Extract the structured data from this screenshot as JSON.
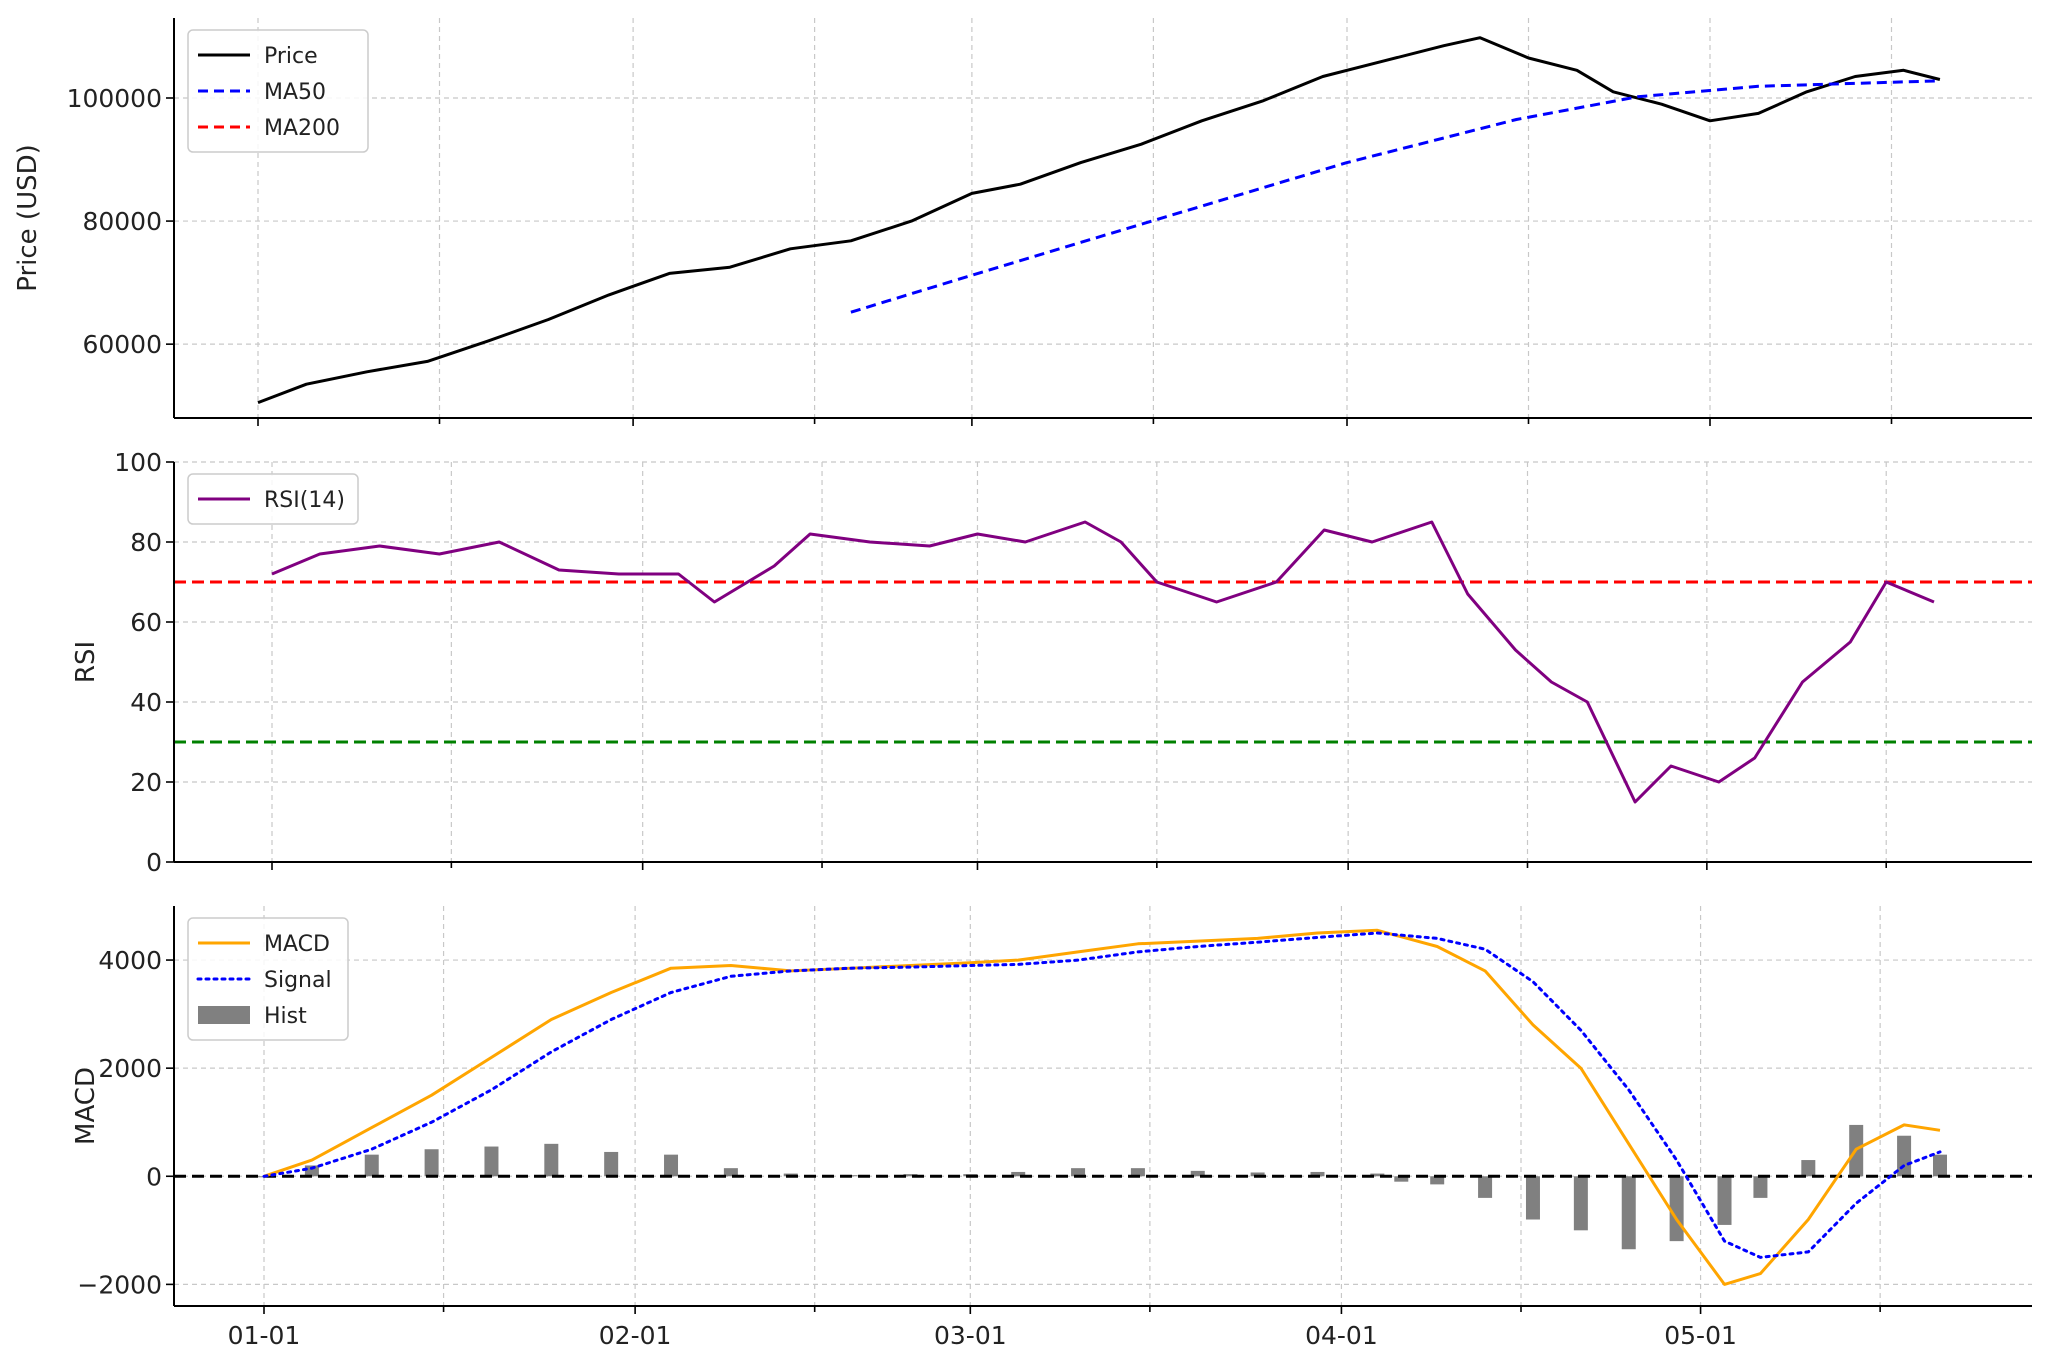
{
  "chart_data": {
    "type": "line",
    "x_axis": {
      "start_date": "2025-01-01",
      "tick_labels": [
        "01-01",
        "02-01",
        "03-01",
        "04-01",
        "05-01"
      ],
      "tick_dates": [
        "2025-01-01",
        "2025-02-01",
        "2025-03-01",
        "2025-04-01",
        "2025-05-01"
      ]
    },
    "colors": {
      "price": "#000000",
      "ma50": "#0000ff",
      "ma200": "#ff0000",
      "rsi": "#800080",
      "overbought": "#ff0000",
      "oversold": "#008000",
      "macd": "#ffa500",
      "signal": "#0000ff",
      "hist": "#808080"
    },
    "panels": [
      {
        "id": "price",
        "ylabel": "Price (USD)",
        "ylim": [
          48000,
          113000
        ],
        "yticks": [
          60000,
          80000,
          100000
        ],
        "legend": [
          {
            "name": "Price",
            "style": "solid",
            "color": "#000000"
          },
          {
            "name": "MA50",
            "style": "dashed",
            "color": "#0000ff"
          },
          {
            "name": "MA200",
            "style": "dashed",
            "color": "#ff0000"
          }
        ],
        "series": [
          {
            "name": "Price",
            "points": [
              [
                "2025-01-01",
                50500
              ],
              [
                "2025-01-05",
                53500
              ],
              [
                "2025-01-10",
                55500
              ],
              [
                "2025-01-15",
                57200
              ],
              [
                "2025-01-20",
                60500
              ],
              [
                "2025-01-25",
                64000
              ],
              [
                "2025-01-30",
                68000
              ],
              [
                "2025-02-04",
                71500
              ],
              [
                "2025-02-09",
                72500
              ],
              [
                "2025-02-14",
                75500
              ],
              [
                "2025-02-19",
                76800
              ],
              [
                "2025-02-24",
                80000
              ],
              [
                "2025-03-01",
                84500
              ],
              [
                "2025-03-05",
                86000
              ],
              [
                "2025-03-10",
                89500
              ],
              [
                "2025-03-15",
                92500
              ],
              [
                "2025-03-20",
                96300
              ],
              [
                "2025-03-25",
                99500
              ],
              [
                "2025-03-30",
                103500
              ],
              [
                "2025-04-04",
                106000
              ],
              [
                "2025-04-09",
                108500
              ],
              [
                "2025-04-12",
                109800
              ],
              [
                "2025-04-16",
                106500
              ],
              [
                "2025-04-20",
                104500
              ],
              [
                "2025-04-23",
                101000
              ],
              [
                "2025-04-27",
                99000
              ],
              [
                "2025-05-01",
                96300
              ],
              [
                "2025-05-05",
                97500
              ],
              [
                "2025-05-09",
                101000
              ],
              [
                "2025-05-13",
                103500
              ],
              [
                "2025-05-17",
                104500
              ],
              [
                "2025-05-20",
                103000
              ]
            ]
          },
          {
            "name": "MA50",
            "points": [
              [
                "2025-02-19",
                65200
              ],
              [
                "2025-03-01",
                71200
              ],
              [
                "2025-03-15",
                79500
              ],
              [
                "2025-04-01",
                89500
              ],
              [
                "2025-04-15",
                96500
              ],
              [
                "2025-04-25",
                100200
              ],
              [
                "2025-05-05",
                101900
              ],
              [
                "2025-05-20",
                102800
              ]
            ]
          }
        ],
        "ma200_points": []
      },
      {
        "id": "rsi",
        "ylabel": "RSI",
        "ylim": [
          0,
          100
        ],
        "yticks": [
          0,
          20,
          40,
          60,
          80,
          100
        ],
        "legend": [
          {
            "name": "RSI(14)",
            "style": "solid",
            "color": "#800080"
          }
        ],
        "hlines": [
          {
            "value": 70,
            "color": "#ff0000"
          },
          {
            "value": 30,
            "color": "#008000"
          }
        ],
        "series": [
          {
            "name": "RSI(14)",
            "points": [
              [
                "2025-01-01",
                72
              ],
              [
                "2025-01-05",
                77
              ],
              [
                "2025-01-10",
                79
              ],
              [
                "2025-01-15",
                77
              ],
              [
                "2025-01-20",
                80
              ],
              [
                "2025-01-25",
                73
              ],
              [
                "2025-01-30",
                72
              ],
              [
                "2025-02-04",
                72
              ],
              [
                "2025-02-07",
                65
              ],
              [
                "2025-02-12",
                74
              ],
              [
                "2025-02-15",
                82
              ],
              [
                "2025-02-20",
                80
              ],
              [
                "2025-02-25",
                79
              ],
              [
                "2025-03-01",
                82
              ],
              [
                "2025-03-05",
                80
              ],
              [
                "2025-03-10",
                85
              ],
              [
                "2025-03-13",
                80
              ],
              [
                "2025-03-16",
                70
              ],
              [
                "2025-03-21",
                65
              ],
              [
                "2025-03-26",
                70
              ],
              [
                "2025-03-30",
                83
              ],
              [
                "2025-04-03",
                80
              ],
              [
                "2025-04-08",
                85
              ],
              [
                "2025-04-11",
                67
              ],
              [
                "2025-04-15",
                53
              ],
              [
                "2025-04-18",
                45
              ],
              [
                "2025-04-21",
                40
              ],
              [
                "2025-04-25",
                15
              ],
              [
                "2025-04-28",
                24
              ],
              [
                "2025-05-02",
                20
              ],
              [
                "2025-05-05",
                26
              ],
              [
                "2025-05-09",
                45
              ],
              [
                "2025-05-13",
                55
              ],
              [
                "2025-05-16",
                70
              ],
              [
                "2025-05-20",
                65
              ]
            ]
          }
        ]
      },
      {
        "id": "macd",
        "ylabel": "MACD",
        "ylim": [
          -2400,
          5000
        ],
        "yticks": [
          -2000,
          0,
          2000,
          4000
        ],
        "legend": [
          {
            "name": "MACD",
            "style": "solid",
            "color": "#ffa500"
          },
          {
            "name": "Signal",
            "style": "dotted",
            "color": "#0000ff"
          },
          {
            "name": "Hist",
            "style": "bar",
            "color": "#808080"
          }
        ],
        "hlines": [
          {
            "value": 0,
            "color": "#000000"
          }
        ],
        "series": [
          {
            "name": "MACD",
            "points": [
              [
                "2025-01-01",
                0
              ],
              [
                "2025-01-05",
                300
              ],
              [
                "2025-01-10",
                900
              ],
              [
                "2025-01-15",
                1500
              ],
              [
                "2025-01-20",
                2200
              ],
              [
                "2025-01-25",
                2900
              ],
              [
                "2025-01-30",
                3400
              ],
              [
                "2025-02-04",
                3850
              ],
              [
                "2025-02-09",
                3900
              ],
              [
                "2025-02-14",
                3800
              ],
              [
                "2025-02-19",
                3850
              ],
              [
                "2025-02-24",
                3900
              ],
              [
                "2025-03-01",
                3950
              ],
              [
                "2025-03-05",
                4000
              ],
              [
                "2025-03-10",
                4150
              ],
              [
                "2025-03-15",
                4300
              ],
              [
                "2025-03-20",
                4350
              ],
              [
                "2025-03-25",
                4400
              ],
              [
                "2025-03-30",
                4500
              ],
              [
                "2025-04-04",
                4550
              ],
              [
                "2025-04-09",
                4250
              ],
              [
                "2025-04-13",
                3800
              ],
              [
                "2025-04-17",
                2800
              ],
              [
                "2025-04-21",
                2000
              ],
              [
                "2025-04-25",
                600
              ],
              [
                "2025-04-29",
                -800
              ],
              [
                "2025-05-03",
                -2000
              ],
              [
                "2025-05-06",
                -1800
              ],
              [
                "2025-05-10",
                -800
              ],
              [
                "2025-05-14",
                500
              ],
              [
                "2025-05-18",
                950
              ],
              [
                "2025-05-21",
                850
              ]
            ]
          },
          {
            "name": "Signal",
            "points": [
              [
                "2025-01-01",
                0
              ],
              [
                "2025-01-05",
                150
              ],
              [
                "2025-01-10",
                500
              ],
              [
                "2025-01-15",
                1000
              ],
              [
                "2025-01-20",
                1600
              ],
              [
                "2025-01-25",
                2300
              ],
              [
                "2025-01-30",
                2900
              ],
              [
                "2025-02-04",
                3400
              ],
              [
                "2025-02-09",
                3700
              ],
              [
                "2025-02-14",
                3800
              ],
              [
                "2025-02-19",
                3850
              ],
              [
                "2025-02-24",
                3870
              ],
              [
                "2025-03-01",
                3900
              ],
              [
                "2025-03-05",
                3920
              ],
              [
                "2025-03-10",
                4000
              ],
              [
                "2025-03-15",
                4150
              ],
              [
                "2025-03-20",
                4250
              ],
              [
                "2025-03-25",
                4330
              ],
              [
                "2025-03-30",
                4420
              ],
              [
                "2025-04-04",
                4500
              ],
              [
                "2025-04-09",
                4400
              ],
              [
                "2025-04-13",
                4200
              ],
              [
                "2025-04-17",
                3600
              ],
              [
                "2025-04-21",
                2700
              ],
              [
                "2025-04-25",
                1600
              ],
              [
                "2025-04-29",
                300
              ],
              [
                "2025-05-03",
                -1200
              ],
              [
                "2025-05-06",
                -1500
              ],
              [
                "2025-05-10",
                -1400
              ],
              [
                "2025-05-14",
                -500
              ],
              [
                "2025-05-18",
                200
              ],
              [
                "2025-05-21",
                450
              ]
            ]
          }
        ],
        "hist": [
          [
            "2025-01-01",
            0
          ],
          [
            "2025-01-05",
            200
          ],
          [
            "2025-01-10",
            400
          ],
          [
            "2025-01-15",
            500
          ],
          [
            "2025-01-20",
            550
          ],
          [
            "2025-01-25",
            600
          ],
          [
            "2025-01-30",
            450
          ],
          [
            "2025-02-04",
            400
          ],
          [
            "2025-02-09",
            150
          ],
          [
            "2025-02-14",
            50
          ],
          [
            "2025-02-19",
            20
          ],
          [
            "2025-02-24",
            40
          ],
          [
            "2025-03-01",
            40
          ],
          [
            "2025-03-05",
            80
          ],
          [
            "2025-03-10",
            150
          ],
          [
            "2025-03-15",
            150
          ],
          [
            "2025-03-20",
            100
          ],
          [
            "2025-03-25",
            70
          ],
          [
            "2025-03-30",
            80
          ],
          [
            "2025-04-04",
            50
          ],
          [
            "2025-04-06",
            -100
          ],
          [
            "2025-04-09",
            -150
          ],
          [
            "2025-04-13",
            -400
          ],
          [
            "2025-04-17",
            -800
          ],
          [
            "2025-04-21",
            -1000
          ],
          [
            "2025-04-25",
            -1350
          ],
          [
            "2025-04-29",
            -1200
          ],
          [
            "2025-05-03",
            -900
          ],
          [
            "2025-05-06",
            -400
          ],
          [
            "2025-05-10",
            300
          ],
          [
            "2025-05-14",
            950
          ],
          [
            "2025-05-18",
            750
          ],
          [
            "2025-05-21",
            400
          ]
        ]
      }
    ]
  }
}
